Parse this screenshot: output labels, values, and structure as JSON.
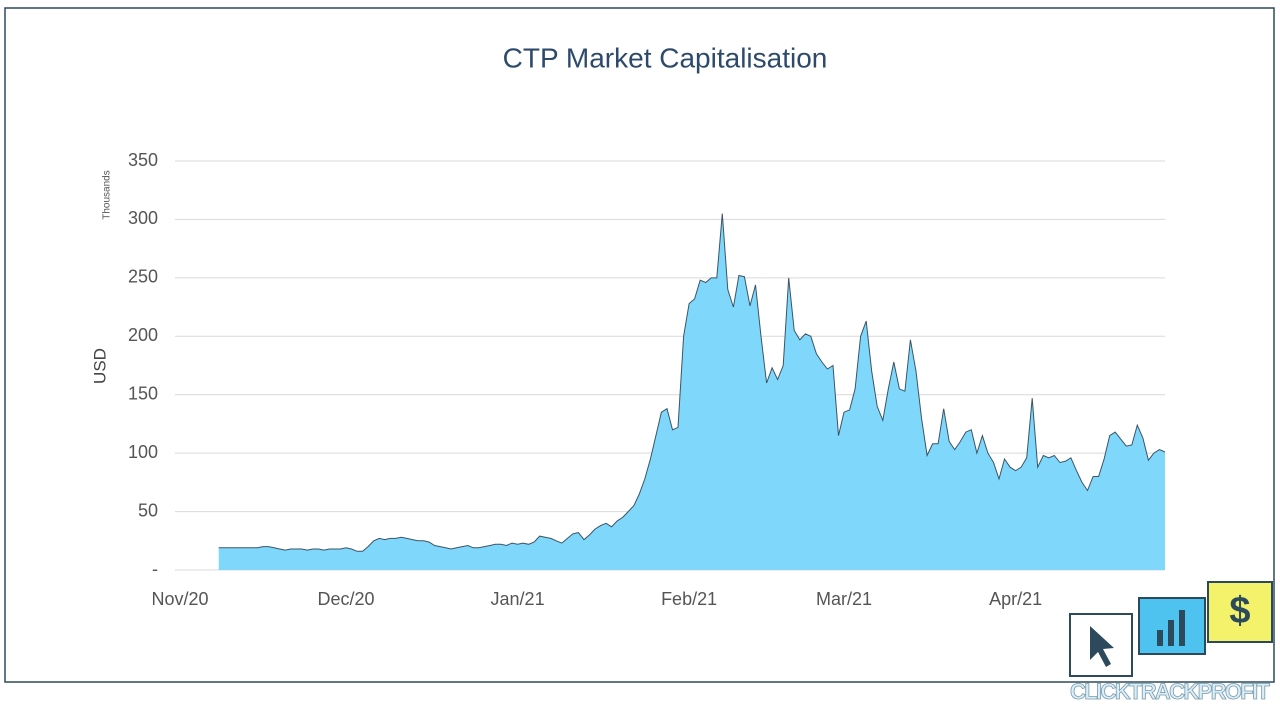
{
  "chart_data": {
    "type": "area",
    "title": "CTP Market Capitalisation",
    "y_label": "USD",
    "y_unit_label": "Thousands",
    "categories": [
      "Nov/20",
      null,
      null,
      null,
      null,
      null,
      null,
      null,
      null,
      null,
      null,
      null,
      null,
      null,
      null,
      null,
      null,
      null,
      null,
      null,
      null,
      null,
      null,
      null,
      null,
      null,
      null,
      null,
      null,
      null,
      "Dec/20",
      null,
      null,
      null,
      null,
      null,
      null,
      null,
      null,
      null,
      null,
      null,
      null,
      null,
      null,
      null,
      null,
      null,
      null,
      null,
      null,
      null,
      null,
      null,
      null,
      null,
      null,
      null,
      null,
      null,
      null,
      "Jan/21",
      null,
      null,
      null,
      null,
      null,
      null,
      null,
      null,
      null,
      null,
      null,
      null,
      null,
      null,
      null,
      null,
      null,
      null,
      null,
      null,
      null,
      null,
      null,
      null,
      null,
      null,
      null,
      null,
      null,
      null,
      "Feb/21",
      null,
      null,
      null,
      null,
      null,
      null,
      null,
      null,
      null,
      null,
      null,
      null,
      null,
      null,
      null,
      null,
      null,
      null,
      null,
      null,
      null,
      null,
      null,
      null,
      null,
      null,
      null,
      "Mar/21",
      null,
      null,
      null,
      null,
      null,
      null,
      null,
      null,
      null,
      null,
      null,
      null,
      null,
      null,
      null,
      null,
      null,
      null,
      null,
      null,
      null,
      null,
      null,
      null,
      null,
      null,
      null,
      null,
      null,
      null,
      "Apr/21",
      null,
      null,
      null,
      null,
      null,
      null,
      null,
      null,
      null,
      null,
      null,
      null,
      null,
      null,
      null,
      null,
      null,
      null,
      null,
      null,
      null,
      null,
      null,
      null,
      null,
      null,
      null
    ],
    "values": [
      null,
      null,
      null,
      null,
      null,
      null,
      null,
      19,
      19,
      19,
      19,
      19,
      19,
      19,
      19,
      20,
      20,
      19,
      18,
      17,
      18,
      18,
      18,
      17,
      18,
      18,
      17,
      18,
      18,
      18,
      19,
      18,
      16,
      16,
      20,
      25,
      27,
      26,
      27,
      27,
      28,
      27,
      26,
      25,
      25,
      24,
      21,
      20,
      19,
      18,
      19,
      20,
      21,
      19,
      19,
      20,
      21,
      22,
      22,
      21,
      23,
      22,
      23,
      22,
      24,
      29,
      28,
      27,
      25,
      23,
      27,
      31,
      32,
      26,
      30,
      35,
      38,
      40,
      37,
      42,
      45,
      50,
      55,
      65,
      78,
      95,
      115,
      135,
      138,
      120,
      122,
      200,
      228,
      232,
      248,
      246,
      250,
      250,
      305,
      240,
      225,
      252,
      251,
      226,
      244,
      200,
      160,
      173,
      163,
      175,
      250,
      205,
      197,
      202,
      200,
      185,
      178,
      172,
      175,
      115,
      135,
      137,
      155,
      200,
      213,
      170,
      140,
      128,
      155,
      178,
      155,
      153,
      197,
      170,
      130,
      98,
      108,
      108,
      138,
      110,
      103,
      110,
      118,
      120,
      100,
      115,
      100,
      92,
      78,
      95,
      88,
      85,
      88,
      96,
      147,
      88,
      98,
      96,
      98,
      92,
      93,
      96,
      85,
      75,
      68,
      80,
      80,
      95,
      115,
      118,
      112,
      106,
      107,
      124,
      113,
      94,
      100,
      103,
      101
    ],
    "color": "#7fd8fc",
    "line_color": "#3a5566",
    "ylim": [
      0,
      350
    ],
    "yticks": [
      {
        "value": 0,
        "label": "-"
      },
      50,
      100,
      150,
      200,
      250,
      300,
      350
    ],
    "grid": true
  },
  "logo": {
    "words": [
      "CLICK",
      "TRACK",
      "PROFIT"
    ],
    "symbol": "$"
  }
}
